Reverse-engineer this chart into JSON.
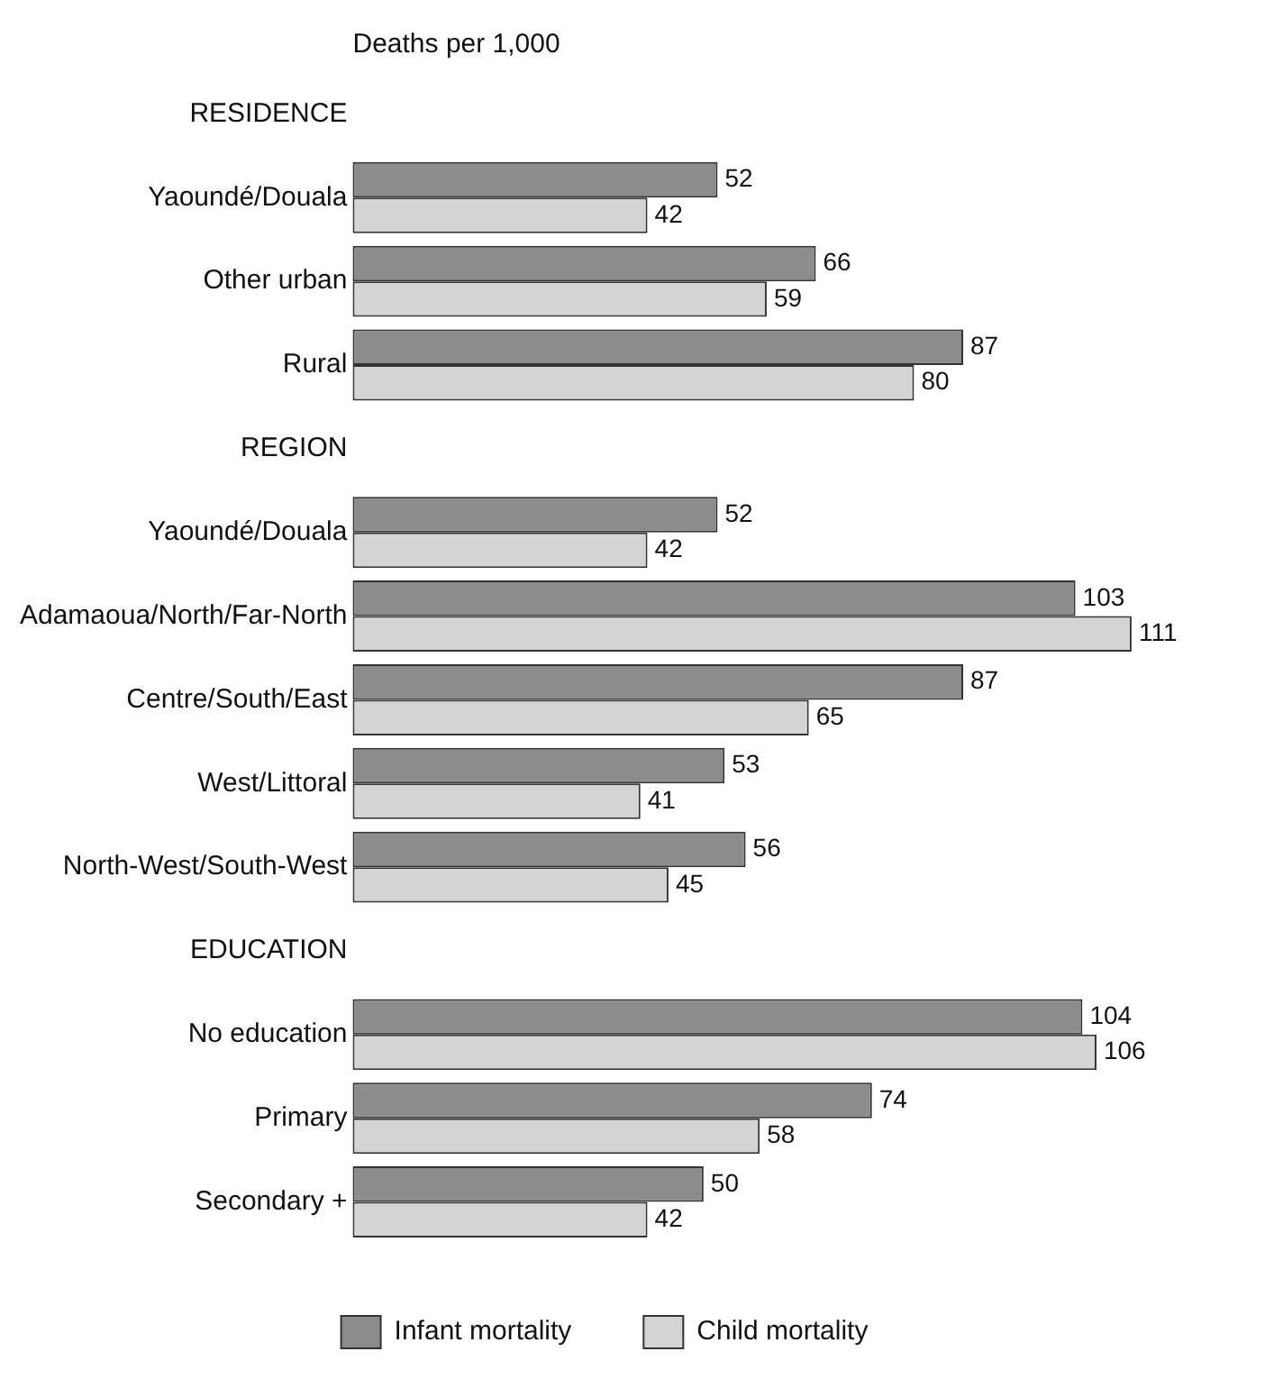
{
  "chart_data": {
    "type": "bar",
    "orientation": "horizontal",
    "xlabel": "Deaths per 1,000",
    "categories": [
      "RESIDENCE",
      "Yaoundé/Douala",
      "Other urban",
      "Rural",
      "REGION",
      "Yaoundé/Douala",
      "Adamaoua/North/Far-North",
      "Centre/South/East",
      "West/Littoral",
      "North-West/South-West",
      "EDUCATION",
      "No education",
      "Primary",
      "Secondary +"
    ],
    "series": [
      {
        "name": "Infant mortality",
        "color": "#8c8c8c",
        "values": [
          null,
          52,
          66,
          87,
          null,
          52,
          103,
          87,
          53,
          56,
          null,
          104,
          74,
          50
        ]
      },
      {
        "name": "Child mortality",
        "color": "#d4d4d4",
        "values": [
          null,
          42,
          59,
          80,
          null,
          42,
          111,
          65,
          41,
          45,
          null,
          106,
          58,
          42
        ]
      }
    ],
    "data_labels": true,
    "legend": "bottom",
    "grid": false
  }
}
